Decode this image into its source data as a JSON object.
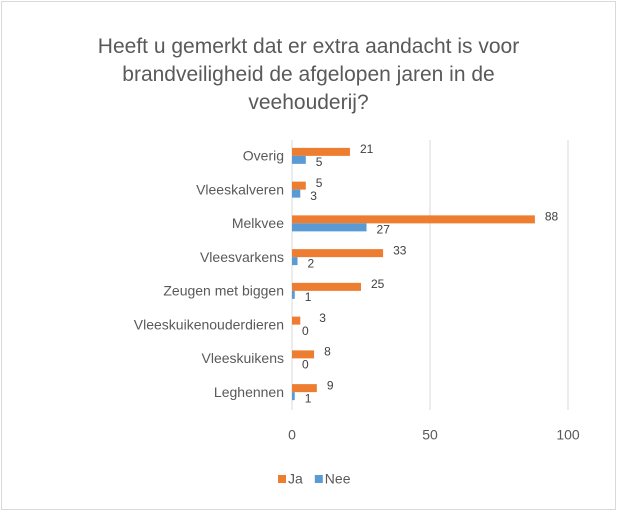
{
  "chart_data": {
    "type": "bar",
    "orientation": "horizontal",
    "title": "Heeft u gemerkt dat er extra aandacht is voor brandveiligheid de afgelopen jaren in de veehouderij?",
    "categories": [
      "Overig",
      "Vleeskalveren",
      "Melkvee",
      "Vleesvarkens",
      "Zeugen met biggen",
      "Vleeskuikenouderdieren",
      "Vleeskuikens",
      "Leghennen"
    ],
    "series": [
      {
        "name": "Ja",
        "color": "#ed7d31",
        "values": [
          21,
          5,
          88,
          33,
          25,
          3,
          8,
          9
        ]
      },
      {
        "name": "Nee",
        "color": "#5b9bd5",
        "values": [
          5,
          3,
          27,
          2,
          1,
          0,
          0,
          1
        ]
      }
    ],
    "xlim": [
      0,
      100
    ],
    "xticks": [
      0,
      50,
      100
    ],
    "grid": true,
    "legend": "bottom"
  }
}
